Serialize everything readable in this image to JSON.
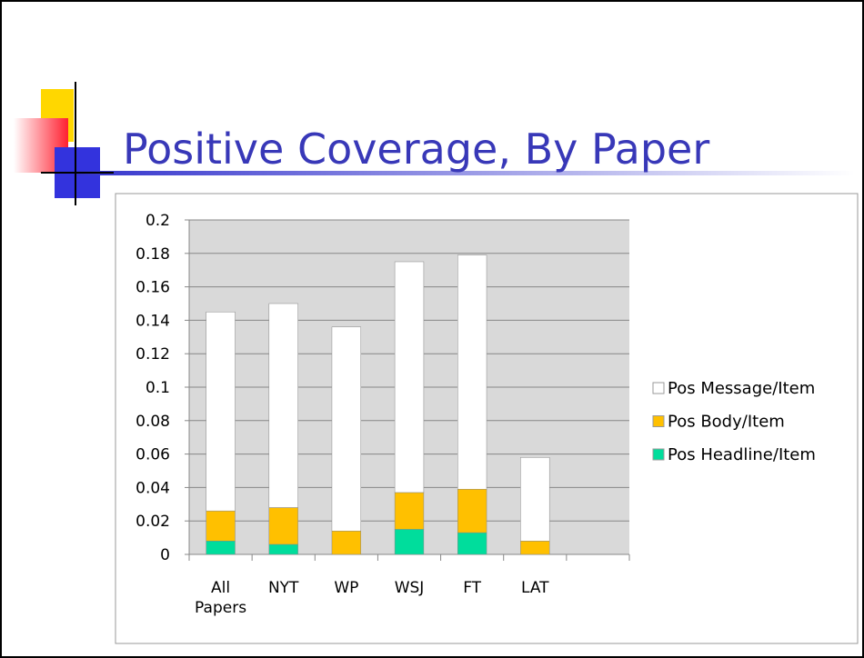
{
  "chart_data": {
    "type": "stacked_bar",
    "title": "Positive Coverage, By Paper",
    "categories": [
      "All Papers",
      "NYT",
      "WP",
      "WSJ",
      "FT",
      "LAT",
      null
    ],
    "series": [
      {
        "name": "Pos Headline/Item",
        "color": "#00dd9c",
        "values": [
          0.008,
          0.006,
          0,
          0.015,
          0.013,
          0,
          null
        ]
      },
      {
        "name": "Pos Body/Item",
        "color": "#ffc000",
        "values": [
          0.018,
          0.022,
          0.014,
          0.022,
          0.026,
          0.008,
          null
        ]
      },
      {
        "name": "Pos Message/Item",
        "color": "#ffffff",
        "values": [
          0.119,
          0.122,
          0.122,
          0.138,
          0.14,
          0.05,
          null
        ]
      }
    ],
    "ylim": [
      0,
      0.2
    ],
    "yticks": [
      0,
      0.02,
      0.04,
      0.06,
      0.08,
      0.1,
      0.12,
      0.14,
      0.16,
      0.18,
      0.2
    ],
    "grid": true,
    "legend": "right"
  }
}
